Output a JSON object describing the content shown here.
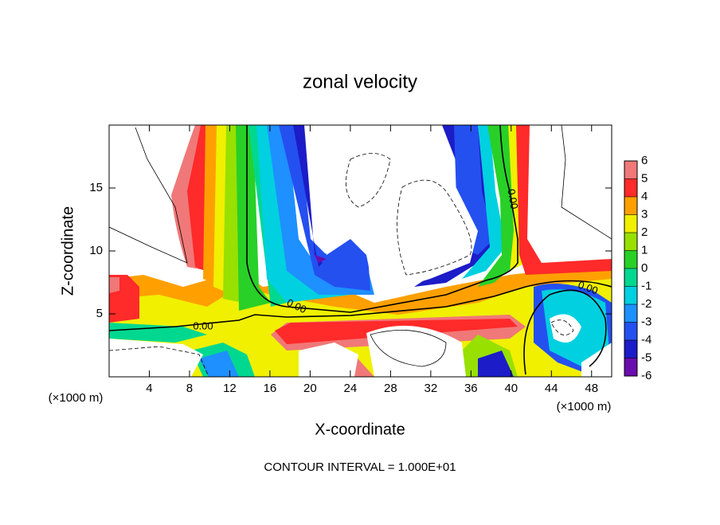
{
  "chart_data": {
    "type": "contour",
    "title": "zonal velocity",
    "x_label": "X-coordinate",
    "y_label": "Z-coordinate",
    "x_unit_label": "(×1000 m)",
    "footer": "CONTOUR INTERVAL = 1.000E+01",
    "contour_label": "0.00",
    "xlim": [
      0,
      50
    ],
    "ylim": [
      0,
      20
    ],
    "xticks": [
      4,
      8,
      12,
      16,
      20,
      24,
      28,
      32,
      36,
      40,
      44,
      48
    ],
    "yticks": [
      5,
      10,
      15
    ],
    "colorbar": {
      "levels": [
        -6,
        -5,
        -4,
        -3,
        -2,
        -1,
        0,
        1,
        2,
        3,
        4,
        5,
        6
      ],
      "colors": [
        "#6a0dad",
        "#1c1cc8",
        "#2450f0",
        "#1e90ff",
        "#00d0e0",
        "#00d890",
        "#28d028",
        "#98e000",
        "#f0f000",
        "#ffa000",
        "#ff2a2a",
        "#f07878"
      ]
    }
  }
}
